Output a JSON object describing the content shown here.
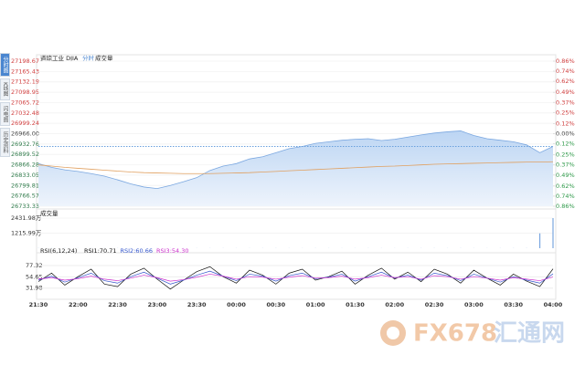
{
  "tabs": [
    "分时图",
    "K线图",
    "闪电图",
    "历史资料"
  ],
  "chart_data": {
    "type": "line",
    "title": "道琼工业 DJIA",
    "subtitle": "分时",
    "volume_title": "成交量",
    "x_labels": [
      "21:30",
      "22:00",
      "22:30",
      "23:00",
      "23:30",
      "00:00",
      "00:30",
      "01:00",
      "01:30",
      "02:00",
      "02:30",
      "03:00",
      "03:30",
      "04:00"
    ],
    "ylim": [
      26733.33,
      27198.67
    ],
    "yticks": [
      27198.67,
      27165.43,
      27132.19,
      27098.95,
      27065.72,
      27032.48,
      26999.24,
      {
        "value": 26966.0,
        "label": "26966.00"
      },
      26932.76,
      26899.52,
      26866.28,
      26833.05,
      26799.81,
      26766.57,
      26733.33
    ],
    "y2lim": [
      -0.86,
      0.86
    ],
    "y2ticks": [
      {
        "value": 0.86,
        "label": "0.86%"
      },
      {
        "value": 0.74,
        "label": "0.74%"
      },
      {
        "value": 0.62,
        "label": "0.62%"
      },
      {
        "value": 0.49,
        "label": "0.49%"
      },
      {
        "value": 0.37,
        "label": "0.37%"
      },
      {
        "value": 0.25,
        "label": "0.25%"
      },
      {
        "value": 0.12,
        "label": "0.12%"
      },
      {
        "value": 0,
        "label": "0.00%"
      },
      {
        "value": -0.12,
        "label": "0.12%"
      },
      {
        "value": -0.25,
        "label": "0.25%"
      },
      {
        "value": -0.37,
        "label": "0.37%"
      },
      {
        "value": -0.49,
        "label": "0.49%"
      },
      {
        "value": -0.62,
        "label": "0.62%"
      },
      {
        "value": -0.74,
        "label": "0.74%"
      },
      {
        "value": -0.86,
        "label": "0.86%"
      }
    ],
    "current_price": 26925,
    "series": [
      {
        "name": "价格",
        "color": "#7aa7e0",
        "values": [
          26870,
          26858,
          26850,
          26845,
          26838,
          26830,
          26818,
          26805,
          26795,
          26790,
          26800,
          26812,
          26825,
          26848,
          26862,
          26870,
          26885,
          26892,
          26905,
          26918,
          26925,
          26935,
          26940,
          26945,
          26948,
          26950,
          26944,
          26948,
          26955,
          26962,
          26968,
          26972,
          26975,
          26960,
          26950,
          26945,
          26940,
          26930,
          26905,
          26925
        ]
      },
      {
        "name": "均价",
        "color": "#e0a060",
        "values": [
          26866,
          26862,
          26858,
          26855,
          26852,
          26849,
          26846,
          26843,
          26841,
          26840,
          26839,
          26838,
          26838,
          26838,
          26839,
          26840,
          26841,
          26843,
          26845,
          26847,
          26849,
          26851,
          26853,
          26855,
          26857,
          26859,
          26861,
          26862,
          26864,
          26866,
          26868,
          26869,
          26870,
          26871,
          26872,
          26873,
          26874,
          26875,
          26875,
          26876
        ]
      }
    ],
    "volume": {
      "color": "#7aa7e0",
      "ylim": [
        0,
        2431.98
      ],
      "yticks": [
        {
          "value": 2431.98,
          "label": "2431.98万"
        },
        {
          "value": 1215.99,
          "label": "1215.99万"
        }
      ],
      "values": [
        12,
        8,
        9,
        7,
        8,
        10,
        9,
        8,
        7,
        9,
        8,
        7,
        8,
        9,
        8,
        7,
        8,
        9,
        10,
        8,
        7,
        9,
        8,
        7,
        8,
        9,
        8,
        7,
        8,
        9,
        10,
        8,
        9,
        8,
        7,
        9,
        10,
        12,
        1200,
        2431.98
      ]
    },
    "rsi": {
      "title": "RSI(6,12,24)",
      "ylim": [
        15,
        92
      ],
      "yticks": [
        77.32,
        54.65,
        31.98
      ],
      "series": [
        {
          "name": "RSI1",
          "label": "RSI1:70.71",
          "color": "#111111",
          "values": [
            45,
            62,
            38,
            55,
            70,
            40,
            35,
            60,
            72,
            50,
            30,
            48,
            65,
            75,
            55,
            42,
            68,
            58,
            40,
            62,
            70,
            48,
            55,
            66,
            40,
            58,
            72,
            50,
            64,
            45,
            70,
            60,
            42,
            68,
            52,
            38,
            60,
            46,
            35,
            70.71
          ]
        },
        {
          "name": "RSI2",
          "label": "RSI2:60.66",
          "color": "#3355cc",
          "values": [
            48,
            56,
            44,
            53,
            62,
            47,
            42,
            55,
            64,
            52,
            40,
            48,
            58,
            66,
            56,
            47,
            60,
            56,
            46,
            57,
            62,
            51,
            54,
            60,
            46,
            55,
            64,
            52,
            58,
            48,
            62,
            57,
            47,
            60,
            52,
            44,
            55,
            48,
            42,
            60.66
          ]
        },
        {
          "name": "RSI3",
          "label": "RSI3:54.30",
          "color": "#cc33cc",
          "values": [
            50,
            53,
            48,
            51,
            56,
            50,
            47,
            52,
            58,
            53,
            46,
            49,
            54,
            60,
            56,
            50,
            55,
            54,
            50,
            54,
            57,
            52,
            53,
            56,
            50,
            53,
            58,
            53,
            55,
            50,
            57,
            55,
            50,
            55,
            52,
            48,
            53,
            50,
            47,
            54.3
          ]
        }
      ]
    }
  },
  "watermark": {
    "brand": "FX678",
    "name": "汇通网"
  }
}
